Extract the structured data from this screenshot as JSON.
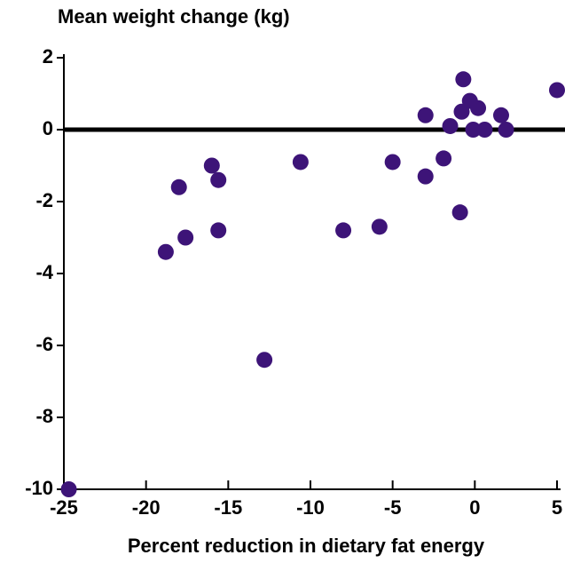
{
  "chart_data": {
    "type": "scatter",
    "ylabel": "Mean weight change (kg)",
    "xlabel": "Percent reduction in dietary fat energy",
    "color": "#3d1478",
    "reference_line": 0,
    "xlim": [
      -25,
      5
    ],
    "ylim": [
      -10,
      2
    ],
    "xticks": [
      -25,
      -20,
      -15,
      -10,
      -5,
      0,
      5
    ],
    "yticks": [
      2,
      0,
      -2,
      -4,
      -6,
      -8,
      -10
    ],
    "x": [
      -24.7,
      -18.8,
      -18.0,
      -17.6,
      -16.0,
      -15.6,
      -15.6,
      -12.8,
      -10.6,
      -8.0,
      -5.8,
      -5.0,
      -3.0,
      -3.0,
      -1.9,
      -1.5,
      -0.9,
      -0.8,
      -0.7,
      -0.3,
      -0.1,
      0.2,
      0.6,
      1.6,
      1.9,
      5.0
    ],
    "values": [
      -10,
      -3.4,
      -1.6,
      -3.0,
      -1.0,
      -1.4,
      -2.8,
      -6.4,
      -0.9,
      -2.8,
      -2.7,
      -0.9,
      0.4,
      -1.3,
      -0.8,
      0.1,
      -2.3,
      0.5,
      1.4,
      0.8,
      0,
      0.6,
      0,
      0.4,
      0,
      1.1
    ]
  }
}
